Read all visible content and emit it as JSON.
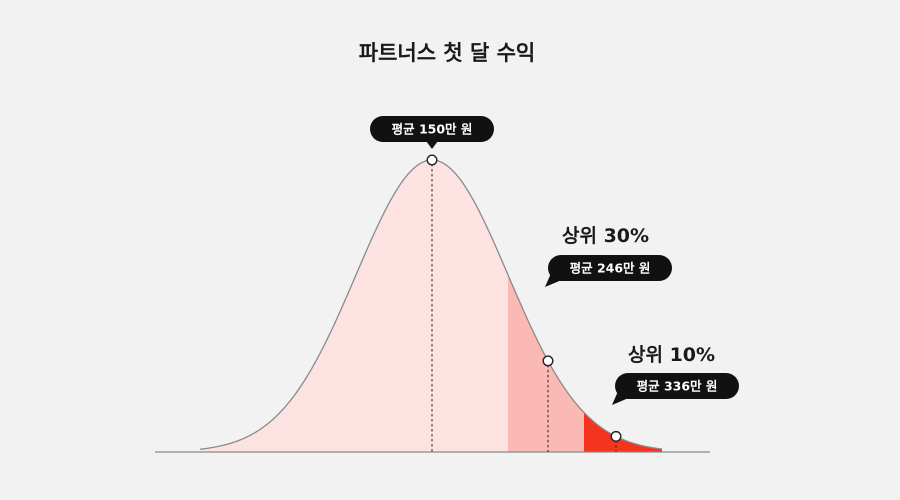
{
  "chart_data": {
    "type": "area",
    "title": "파트너스 첫 달 수익",
    "xlabel": "",
    "ylabel": "",
    "grid": false,
    "distribution": "normal",
    "markers": [
      {
        "heading": "",
        "label": "평균 150만 원",
        "value": 150
      },
      {
        "heading": "상위 30%",
        "label": "평균 246만 원",
        "value": 246
      },
      {
        "heading": "상위 10%",
        "label": "평균 336만 원",
        "value": 336
      }
    ],
    "bands": [
      {
        "name": "base",
        "color": "#fde2e2"
      },
      {
        "name": "상위 30%",
        "color": "#fbb9b4"
      },
      {
        "name": "상위 10%",
        "color": "#f5341f"
      }
    ],
    "colors": {
      "curve": "#8a8a8a",
      "pill": "#111111",
      "baseline": "#8a8a8a"
    }
  }
}
